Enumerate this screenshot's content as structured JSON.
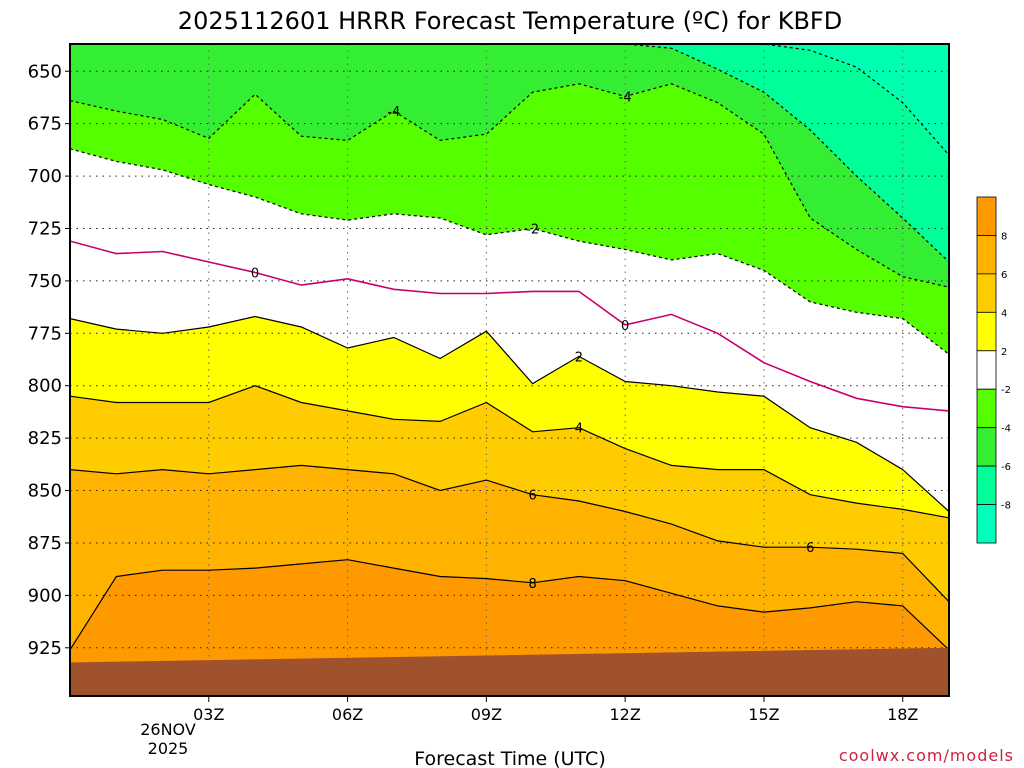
{
  "chart_data": {
    "type": "contour",
    "title": "2025112601 HRRR Forecast Temperature (ºC) for KBFD",
    "xlabel": "Forecast Time (UTC)",
    "ylabel": "",
    "credit": "coolwx.com/models",
    "x_ticks": [
      "03Z",
      "06Z",
      "09Z",
      "12Z",
      "15Z",
      "18Z"
    ],
    "x_tick_hours": [
      3,
      6,
      9,
      12,
      15,
      18
    ],
    "x_date_label": [
      "26NOV",
      "2025"
    ],
    "xlim_hours": [
      0,
      19
    ],
    "y_ticks": [
      650,
      675,
      700,
      725,
      750,
      775,
      800,
      825,
      850,
      875,
      900,
      925
    ],
    "ylim_hpa": [
      637,
      948
    ],
    "y_inverted": true,
    "grid": true,
    "contour_labels": [
      "-4",
      "-4",
      "-2",
      "0",
      "0",
      "2",
      "4",
      "6",
      "6",
      "8"
    ],
    "legend": {
      "levels": [
        "8",
        "6",
        "4",
        "2",
        "-2",
        "-4",
        "-6",
        "-8"
      ],
      "colors": [
        "#ff9900",
        "#ffb300",
        "#ffcc00",
        "#ffff00",
        "#ffffff",
        "#55ff00",
        "#33ee33",
        "#00ff99",
        "#00ffbb"
      ]
    },
    "fill_colors": {
      "ge8": "#ff9900",
      "6_8": "#ffb300",
      "4_6": "#ffcc00",
      "2_4": "#ffff00",
      "m2_2": "#ffffff",
      "m4_m2": "#55ff00",
      "m6_m4": "#33ee33",
      "m8_m6": "#00ff99",
      "ground": "#a0522d"
    },
    "isotherms_hpa": {
      "hours": [
        0,
        1,
        2,
        3,
        4,
        5,
        6,
        7,
        8,
        9,
        10,
        11,
        12,
        13,
        14,
        15,
        16,
        17,
        18,
        19
      ],
      "t8": [
        926,
        891,
        888,
        888,
        887,
        885,
        883,
        887,
        891,
        892,
        894,
        891,
        893,
        899,
        905,
        908,
        906,
        903,
        905,
        926
      ],
      "t6": [
        840,
        842,
        840,
        842,
        840,
        838,
        840,
        842,
        850,
        845,
        852,
        855,
        860,
        866,
        874,
        877,
        877,
        878,
        880,
        903
      ],
      "t4": [
        805,
        808,
        808,
        808,
        800,
        808,
        812,
        816,
        817,
        808,
        822,
        820,
        830,
        838,
        840,
        840,
        852,
        856,
        859,
        863
      ],
      "t2": [
        768,
        773,
        775,
        772,
        767,
        772,
        782,
        777,
        787,
        774,
        799,
        786,
        798,
        800,
        803,
        805,
        820,
        827,
        840,
        860
      ],
      "t0": [
        731,
        737,
        736,
        741,
        746,
        752,
        749,
        754,
        756,
        756,
        755,
        755,
        771,
        766,
        775,
        789,
        798,
        806,
        810,
        812
      ],
      "tm2": [
        687,
        693,
        697,
        704,
        710,
        718,
        721,
        718,
        720,
        728,
        725,
        731,
        735,
        740,
        737,
        745,
        760,
        765,
        768,
        785
      ],
      "tm4": [
        664,
        669,
        673,
        682,
        661,
        681,
        683,
        669,
        683,
        680,
        660,
        656,
        662,
        656,
        665,
        680,
        720,
        735,
        748,
        753
      ],
      "tm6": [
        637,
        637,
        637,
        637,
        637,
        637,
        637,
        637,
        637,
        637,
        637,
        637,
        637,
        639,
        649,
        660,
        678,
        700,
        720,
        741
      ],
      "tm8": [
        637,
        637,
        637,
        637,
        637,
        637,
        637,
        637,
        637,
        637,
        637,
        637,
        637,
        637,
        637,
        637,
        640,
        648,
        665,
        690
      ]
    },
    "surface_hpa": {
      "hours": [
        0,
        19
      ],
      "values": [
        932,
        925
      ]
    }
  }
}
